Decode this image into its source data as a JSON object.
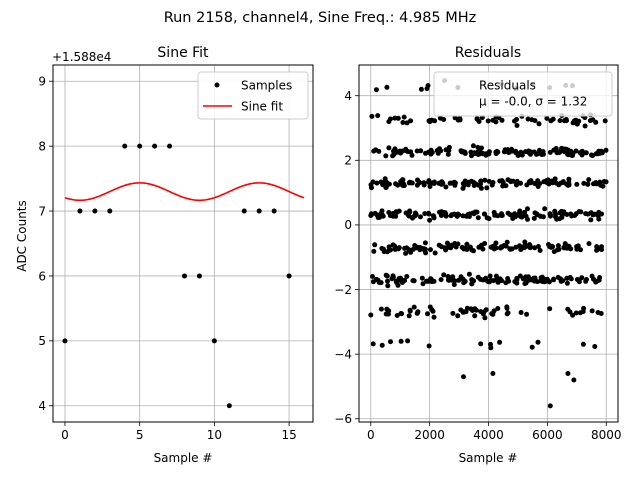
{
  "suptitle": "Run 2158, channel4, Sine Freq.: 4.985 MHz",
  "chart_data": [
    {
      "type": "scatter",
      "title": "Sine Fit",
      "xlabel": "Sample #",
      "ylabel": "ADC Counts",
      "offset_label": "+1.588e4",
      "xlim": [
        -0.8,
        16.6
      ],
      "ylim": [
        3.75,
        9.25
      ],
      "xticks": [
        0,
        5,
        10,
        15
      ],
      "xtick_labels": [
        "0",
        "5",
        "10",
        "15"
      ],
      "yticks": [
        4,
        5,
        6,
        7,
        8,
        9
      ],
      "ytick_labels": [
        "4",
        "5",
        "6",
        "7",
        "8",
        "9"
      ],
      "grid": true,
      "legend_position": "top-right",
      "series": [
        {
          "name": "Samples",
          "style": "points",
          "color": "#000000",
          "x": [
            0,
            1,
            2,
            3,
            4,
            5,
            6,
            7,
            8,
            9,
            10,
            11,
            12,
            13,
            14,
            15
          ],
          "y": [
            5,
            7,
            7,
            7,
            8,
            8,
            8,
            8,
            6,
            6,
            5,
            4,
            7,
            7,
            7,
            6
          ]
        },
        {
          "name": "Sine fit",
          "style": "line",
          "color": "#ff0000",
          "fit": {
            "mean": 7.3,
            "amplitude": 0.134,
            "period": 8.0,
            "peak_x": 5.0,
            "x_range": [
              0,
              16
            ]
          }
        }
      ]
    },
    {
      "type": "scatter",
      "title": "Residuals",
      "xlabel": "Sample #",
      "xlim": [
        -400,
        8400
      ],
      "ylim": [
        -6.1,
        4.95
      ],
      "xticks": [
        0,
        2000,
        4000,
        6000,
        8000
      ],
      "xtick_labels": [
        "0",
        "2000",
        "4000",
        "6000",
        "8000"
      ],
      "yticks": [
        -6,
        -4,
        -2,
        0,
        2,
        4
      ],
      "ytick_labels": [
        "−6",
        "−4",
        "−2",
        "0",
        "2",
        "4"
      ],
      "grid": true,
      "legend_position": "top-right",
      "legend_label": "Residuals",
      "legend_stats": "μ = -0.0, σ = 1.32",
      "n_samples": 8000,
      "bands": [
        {
          "center": -1.7,
          "spread": 0.12,
          "density": "dense"
        },
        {
          "center": -0.7,
          "spread": 0.12,
          "density": "dense"
        },
        {
          "center": 0.3,
          "spread": 0.12,
          "density": "dense"
        },
        {
          "center": 1.3,
          "spread": 0.12,
          "density": "dense"
        },
        {
          "center": 2.25,
          "spread": 0.1,
          "density": "dense"
        },
        {
          "center": -2.7,
          "spread": 0.12,
          "density": "medium"
        },
        {
          "center": 3.25,
          "spread": 0.12,
          "density": "medium"
        },
        {
          "center": -3.7,
          "spread": 0.15,
          "density": "sparse"
        },
        {
          "center": 4.25,
          "spread": 0.12,
          "density": "sparse"
        }
      ],
      "outliers": [
        {
          "x": 3150,
          "y": -4.7
        },
        {
          "x": 4150,
          "y": -4.6
        },
        {
          "x": 6100,
          "y": -5.6
        },
        {
          "x": 6700,
          "y": -4.6
        },
        {
          "x": 6900,
          "y": -4.8
        }
      ]
    }
  ]
}
